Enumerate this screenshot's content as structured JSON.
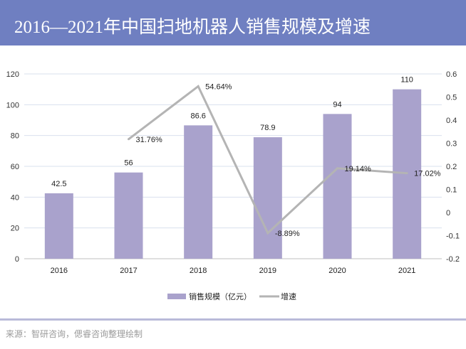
{
  "title": "2016—2021年中国扫地机器人销售规模及增速",
  "source": "来源：智研咨询，偲睿咨询整理绘制",
  "chart_data": {
    "type": "bar+line",
    "categories": [
      "2016",
      "2017",
      "2018",
      "2019",
      "2020",
      "2021"
    ],
    "series": [
      {
        "name": "销售规模（亿元）",
        "type": "bar",
        "axis": "left",
        "color": "#a9a2cc",
        "values": [
          42.5,
          56,
          86.6,
          78.9,
          94,
          110
        ],
        "labels": [
          "42.5",
          "56",
          "86.6",
          "78.9",
          "94",
          "110"
        ]
      },
      {
        "name": "增速",
        "type": "line",
        "axis": "right",
        "color": "#b4b4b4",
        "values": [
          null,
          0.3176,
          0.5464,
          -0.0889,
          0.1914,
          0.1702
        ],
        "labels": [
          "",
          "31.76%",
          "54.64%",
          "-8.89%",
          "19.14%",
          "17.02%"
        ]
      }
    ],
    "ylim_left": [
      0,
      120
    ],
    "yticks_left": [
      "0",
      "20",
      "40",
      "60",
      "80",
      "100",
      "120"
    ],
    "ylim_right": [
      -0.2,
      0.6
    ],
    "yticks_right": [
      "-0.2",
      "-0.1",
      "0",
      "0.1",
      "0.2",
      "0.3",
      "0.4",
      "0.5",
      "0.6"
    ],
    "grid": true,
    "legend": "bottom"
  }
}
